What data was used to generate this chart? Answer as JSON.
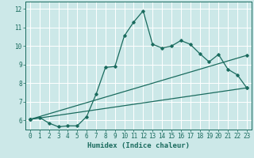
{
  "xlabel": "Humidex (Indice chaleur)",
  "background_color": "#cce8e8",
  "grid_color": "#ffffff",
  "line_color": "#1a6b5e",
  "xlim": [
    -0.5,
    23.5
  ],
  "ylim": [
    5.5,
    12.4
  ],
  "yticks": [
    6,
    7,
    8,
    9,
    10,
    11,
    12
  ],
  "xticks": [
    0,
    1,
    2,
    3,
    4,
    5,
    6,
    7,
    8,
    9,
    10,
    11,
    12,
    13,
    14,
    15,
    16,
    17,
    18,
    19,
    20,
    21,
    22,
    23
  ],
  "series1_x": [
    0,
    1,
    2,
    3,
    4,
    5,
    6,
    7,
    8,
    9,
    10,
    11,
    12,
    13,
    14,
    15,
    16,
    17,
    18,
    19,
    20,
    21,
    22,
    23
  ],
  "series1_y": [
    6.05,
    6.15,
    5.85,
    5.65,
    5.7,
    5.7,
    6.2,
    7.4,
    8.85,
    8.9,
    10.55,
    11.3,
    11.9,
    10.1,
    9.9,
    10.0,
    10.3,
    10.1,
    9.6,
    9.15,
    9.55,
    8.75,
    8.45,
    7.75
  ],
  "series2_x": [
    0,
    23
  ],
  "series2_y": [
    6.05,
    9.5
  ],
  "series3_x": [
    0,
    23
  ],
  "series3_y": [
    6.05,
    7.75
  ],
  "marker_style": "D",
  "marker_size": 1.8,
  "line_width": 0.9,
  "tick_fontsize": 5.5,
  "xlabel_fontsize": 6.5
}
